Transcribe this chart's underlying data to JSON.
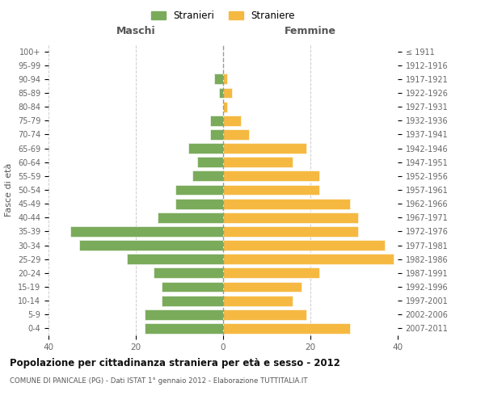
{
  "age_groups": [
    "0-4",
    "5-9",
    "10-14",
    "15-19",
    "20-24",
    "25-29",
    "30-34",
    "35-39",
    "40-44",
    "45-49",
    "50-54",
    "55-59",
    "60-64",
    "65-69",
    "70-74",
    "75-79",
    "80-84",
    "85-89",
    "90-94",
    "95-99",
    "100+"
  ],
  "birth_years": [
    "2007-2011",
    "2002-2006",
    "1997-2001",
    "1992-1996",
    "1987-1991",
    "1982-1986",
    "1977-1981",
    "1972-1976",
    "1967-1971",
    "1962-1966",
    "1957-1961",
    "1952-1956",
    "1947-1951",
    "1942-1946",
    "1937-1941",
    "1932-1936",
    "1927-1931",
    "1922-1926",
    "1917-1921",
    "1912-1916",
    "≤ 1911"
  ],
  "maschi": [
    18,
    18,
    14,
    14,
    16,
    22,
    33,
    35,
    15,
    11,
    11,
    7,
    6,
    8,
    3,
    3,
    0,
    1,
    2,
    0,
    0
  ],
  "femmine": [
    29,
    19,
    16,
    18,
    22,
    39,
    37,
    31,
    31,
    29,
    22,
    22,
    16,
    19,
    6,
    4,
    1,
    2,
    1,
    0,
    0
  ],
  "male_color": "#7aab5b",
  "female_color": "#f5b942",
  "xlim": 40,
  "title": "Popolazione per cittadinanza straniera per età e sesso - 2012",
  "subtitle": "COMUNE DI PANICALE (PG) - Dati ISTAT 1° gennaio 2012 - Elaborazione TUTTITALIA.IT",
  "ylabel_left": "Fasce di età",
  "legend_maschi": "Stranieri",
  "legend_femmine": "Straniere",
  "maschi_label": "Maschi",
  "femmine_label": "Femmine",
  "background_color": "#ffffff",
  "grid_color": "#cccccc"
}
